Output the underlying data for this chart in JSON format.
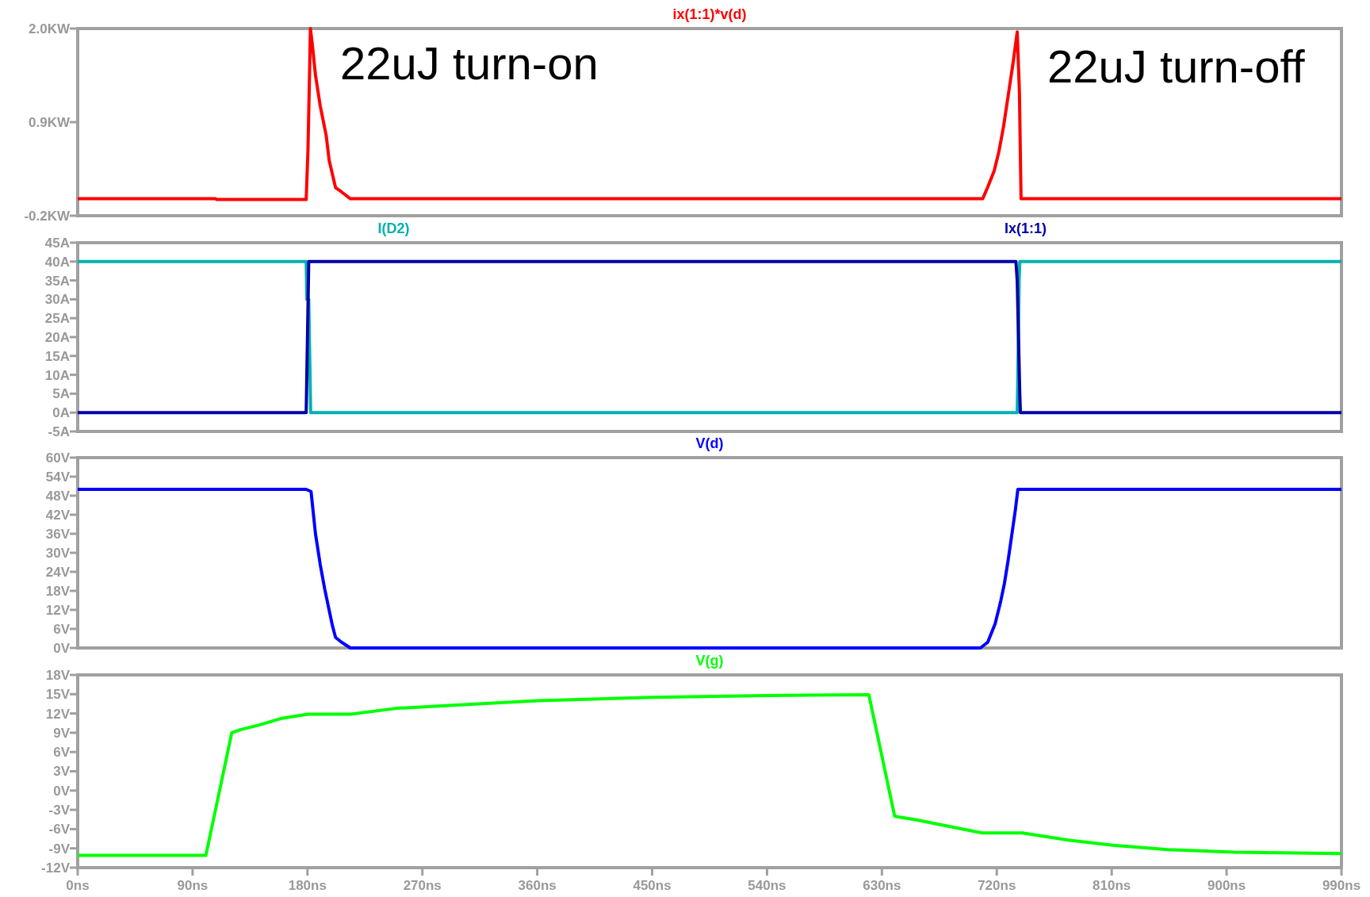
{
  "chart_data": [
    {
      "type": "line",
      "legend": "top",
      "grid": false,
      "tick_labels": "y",
      "xlim": [
        0,
        990
      ],
      "ylim": [
        -0.2,
        2.0
      ],
      "yticks": [
        {
          "value": -0.2,
          "label": "-0.2KW"
        },
        {
          "value": 0.9,
          "label": "0.9KW"
        },
        {
          "value": 2.0,
          "label": "2.0KW"
        }
      ],
      "annotations": [
        {
          "text": "22uJ turn-on",
          "x": 182,
          "y": 2.0
        },
        {
          "text": "22uJ turn-off",
          "x": 736,
          "y": 1.96
        }
      ],
      "series": [
        {
          "name": "ix(1:1)*v(d)",
          "color": "#ff0000",
          "x": [
            0,
            108,
            109,
            179,
            180.4,
            181.6,
            182.3,
            183.9,
            186.3,
            190,
            194.7,
            197,
            202,
            206.7,
            213.6,
            709,
            713,
            718,
            721.6,
            725.3,
            729,
            732.8,
            736,
            737.7,
            739,
            990
          ],
          "values": [
            0,
            0,
            -0.01,
            -0.01,
            0.58,
            1.45,
            2.0,
            1.8,
            1.45,
            1.09,
            0.74,
            0.45,
            0.13,
            0.08,
            0,
            0,
            0.14,
            0.33,
            0.55,
            0.85,
            1.22,
            1.6,
            1.96,
            1.27,
            0,
            0
          ]
        }
      ]
    },
    {
      "type": "line",
      "legend": "top",
      "grid": false,
      "tick_labels": "y",
      "xlim": [
        0,
        990
      ],
      "ylim": [
        -5,
        45
      ],
      "yticks": [
        {
          "value": -5,
          "label": "-5A"
        },
        {
          "value": 0,
          "label": "0A"
        },
        {
          "value": 5,
          "label": "5A"
        },
        {
          "value": 10,
          "label": "10A"
        },
        {
          "value": 15,
          "label": "15A"
        },
        {
          "value": 20,
          "label": "20A"
        },
        {
          "value": 25,
          "label": "25A"
        },
        {
          "value": 30,
          "label": "30A"
        },
        {
          "value": 35,
          "label": "35A"
        },
        {
          "value": 40,
          "label": "40A"
        },
        {
          "value": 45,
          "label": "45A"
        }
      ],
      "series": [
        {
          "name": "I(D2)",
          "color": "#00b0b0",
          "x": [
            0,
            179,
            179.5,
            181,
            182,
            182.5,
            736,
            736.5,
            737.5,
            738,
            990
          ],
          "values": [
            40,
            40,
            30,
            30,
            10,
            0,
            0,
            10,
            35,
            40,
            40
          ]
        },
        {
          "name": "Ix(1:1)",
          "color": "#0000a8",
          "x": [
            0,
            179,
            179.5,
            180.5,
            181,
            735,
            736,
            737,
            738,
            738.5,
            990
          ],
          "values": [
            0,
            0,
            10,
            30,
            40,
            40,
            35,
            20,
            5,
            0,
            0
          ]
        }
      ]
    },
    {
      "type": "line",
      "legend": "top",
      "grid": false,
      "tick_labels": "y",
      "xlim": [
        0,
        990
      ],
      "ylim": [
        0,
        60
      ],
      "yticks": [
        {
          "value": 0,
          "label": "0V"
        },
        {
          "value": 6,
          "label": "6V"
        },
        {
          "value": 12,
          "label": "12V"
        },
        {
          "value": 18,
          "label": "18V"
        },
        {
          "value": 24,
          "label": "24V"
        },
        {
          "value": 30,
          "label": "30V"
        },
        {
          "value": 36,
          "label": "36V"
        },
        {
          "value": 42,
          "label": "42V"
        },
        {
          "value": 48,
          "label": "48V"
        },
        {
          "value": 54,
          "label": "54V"
        },
        {
          "value": 60,
          "label": "60V"
        }
      ],
      "series": [
        {
          "name": "V(d)",
          "color": "#0000ff",
          "x": [
            0,
            179,
            182.8,
            186.3,
            190,
            193.5,
            196,
            199.5,
            202,
            206.7,
            213.6,
            707.2,
            712.9,
            718.7,
            723,
            726,
            728.8,
            731.7,
            734.6,
            736.5,
            990
          ],
          "values": [
            50,
            50,
            49.3,
            35.9,
            26.3,
            18.6,
            13.8,
            7.1,
            3.3,
            1.8,
            0,
            0,
            1.8,
            7.6,
            14.6,
            20.4,
            27.4,
            35.5,
            43.7,
            50,
            50
          ]
        }
      ]
    },
    {
      "type": "line",
      "legend": "top",
      "grid": false,
      "xlim": [
        0,
        990
      ],
      "xticks": [
        {
          "value": 0,
          "label": "0ns"
        },
        {
          "value": 90,
          "label": "90ns"
        },
        {
          "value": 180,
          "label": "180ns"
        },
        {
          "value": 270,
          "label": "270ns"
        },
        {
          "value": 360,
          "label": "360ns"
        },
        {
          "value": 450,
          "label": "450ns"
        },
        {
          "value": 540,
          "label": "540ns"
        },
        {
          "value": 630,
          "label": "630ns"
        },
        {
          "value": 720,
          "label": "720ns"
        },
        {
          "value": 810,
          "label": "810ns"
        },
        {
          "value": 900,
          "label": "900ns"
        },
        {
          "value": 990,
          "label": "990ns"
        }
      ],
      "ylim": [
        -12,
        18
      ],
      "yticks": [
        {
          "value": -12,
          "label": "-12V"
        },
        {
          "value": -9,
          "label": "-9V"
        },
        {
          "value": -6,
          "label": "-6V"
        },
        {
          "value": -3,
          "label": "-3V"
        },
        {
          "value": 0,
          "label": "0V"
        },
        {
          "value": 3,
          "label": "3V"
        },
        {
          "value": 6,
          "label": "6V"
        },
        {
          "value": 9,
          "label": "9V"
        },
        {
          "value": 12,
          "label": "12V"
        },
        {
          "value": 15,
          "label": "15V"
        },
        {
          "value": 18,
          "label": "18V"
        }
      ],
      "series": [
        {
          "name": "V(g)",
          "color": "#00ff00",
          "x": [
            0,
            100.4,
            120.7,
            127.8,
            142.2,
            158.9,
            180.4,
            213.8,
            249.6,
            313.6,
            360,
            450,
            540,
            619.8,
            640,
            658,
            678,
            708.6,
            740,
            776,
            811,
            854,
            906,
            990
          ],
          "values": [
            -10.1,
            -10.1,
            9.0,
            9.5,
            10.2,
            11.2,
            11.9,
            11.9,
            12.8,
            13.5,
            14,
            14.5,
            14.8,
            14.9,
            -4.0,
            -4.6,
            -5.4,
            -6.6,
            -6.6,
            -7.7,
            -8.5,
            -9.2,
            -9.6,
            -9.8
          ]
        }
      ]
    }
  ]
}
